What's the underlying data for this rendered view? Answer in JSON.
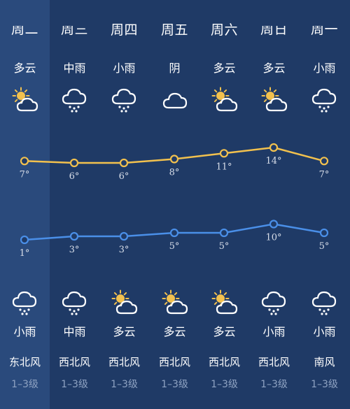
{
  "forecast": {
    "days": [
      {
        "weekday": "周二",
        "day_condition": "多云",
        "day_icon": "sun-cloud-icon",
        "night_icon": "rain-cloud-icon",
        "night_condition": "小雨",
        "wind_direction": "东北风",
        "wind_level": "1–3级",
        "cut": true
      },
      {
        "weekday": "周三",
        "day_condition": "中雨",
        "day_icon": "rain-cloud-icon",
        "night_icon": "rain-cloud-icon",
        "night_condition": "中雨",
        "wind_direction": "西北风",
        "wind_level": "1–3级",
        "cut": true
      },
      {
        "weekday": "周四",
        "day_condition": "小雨",
        "day_icon": "rain-cloud-icon",
        "night_icon": "sun-cloud-icon",
        "night_condition": "多云",
        "wind_direction": "西北风",
        "wind_level": "1–3级",
        "cut": false
      },
      {
        "weekday": "周五",
        "day_condition": "阴",
        "day_icon": "cloud-icon",
        "night_icon": "sun-cloud-icon",
        "night_condition": "多云",
        "wind_direction": "西北风",
        "wind_level": "1–3级",
        "cut": false
      },
      {
        "weekday": "周六",
        "day_condition": "多云",
        "day_icon": "sun-cloud-icon",
        "night_icon": "sun-cloud-icon",
        "night_condition": "多云",
        "wind_direction": "西北风",
        "wind_level": "1–3级",
        "cut": false
      },
      {
        "weekday": "周日",
        "day_condition": "多云",
        "day_icon": "sun-cloud-icon",
        "night_icon": "rain-cloud-icon",
        "night_condition": "小雨",
        "wind_direction": "西北风",
        "wind_level": "1–3级",
        "cut": true
      },
      {
        "weekday": "周一",
        "day_condition": "小雨",
        "day_icon": "rain-cloud-icon",
        "night_icon": "rain-cloud-icon",
        "night_condition": "小雨",
        "wind_direction": "南风",
        "wind_level": "1–3级",
        "cut": true
      }
    ]
  },
  "chart_data": {
    "type": "line",
    "series": [
      {
        "values": [
          7,
          6,
          6,
          8,
          11,
          14,
          7
        ],
        "labels": [
          "7°",
          "6°",
          "6°",
          "8°",
          "11°",
          "14°",
          "7°"
        ],
        "color": "#f2c14e"
      },
      {
        "values": [
          1,
          3,
          3,
          5,
          5,
          10,
          5
        ],
        "labels": [
          "1°",
          "3°",
          "3°",
          "5°",
          "5°",
          "10°",
          "5°"
        ],
        "color": "#4a8fe8"
      }
    ]
  },
  "colors": {
    "background": "#1f3a66",
    "highlight_column": "#2a4a7c",
    "high_line": "#f2c14e",
    "low_line": "#4a8fe8",
    "muted_text": "#8ea2c2"
  }
}
